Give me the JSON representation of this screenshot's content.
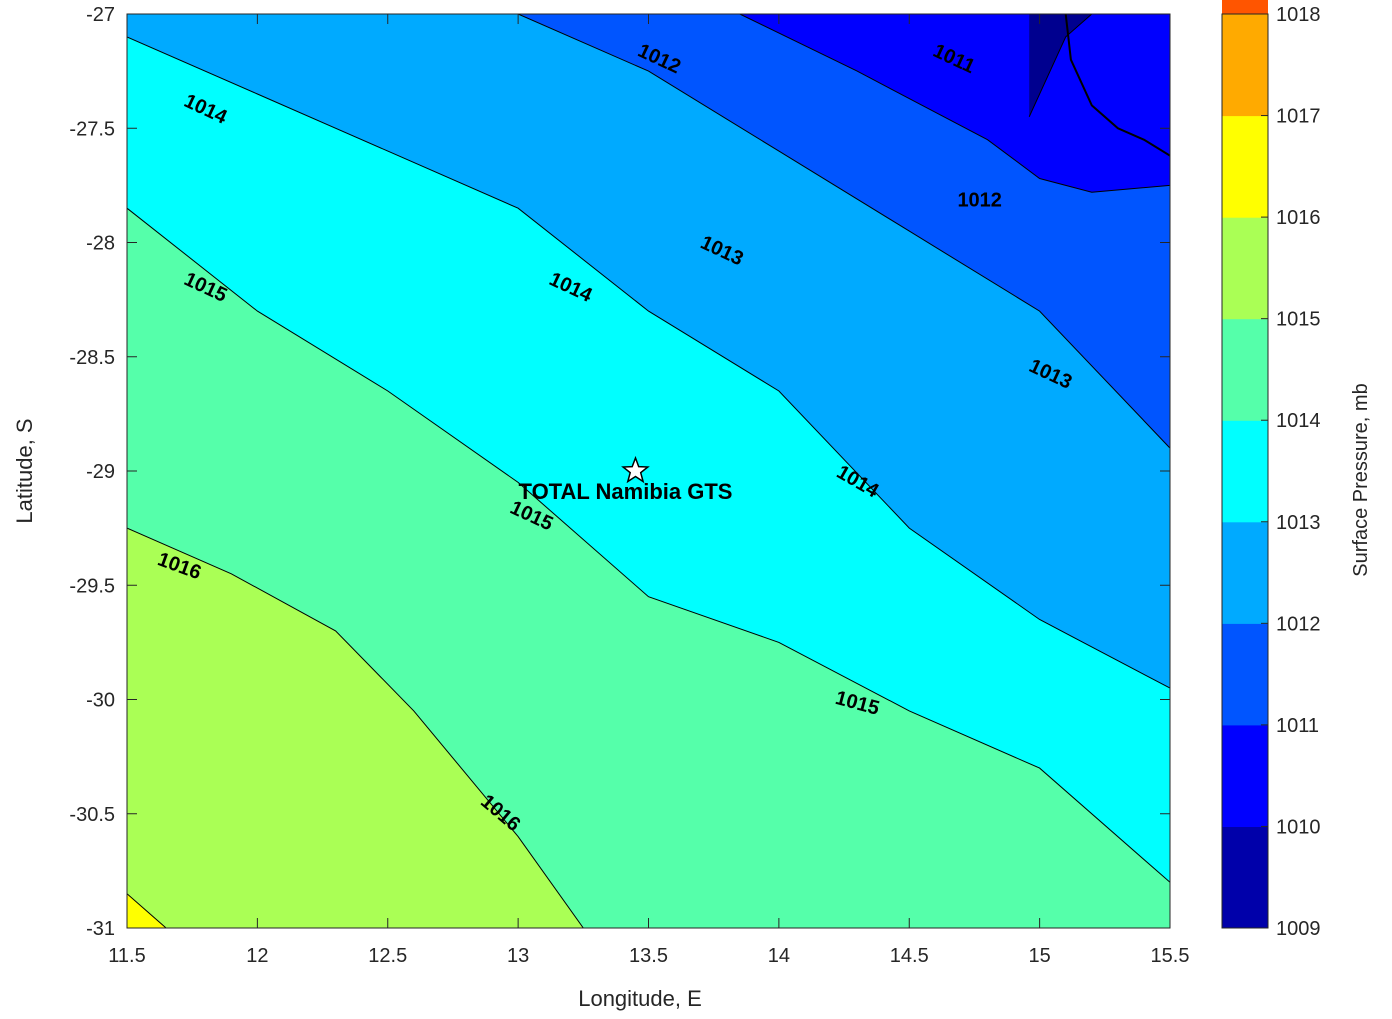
{
  "chart_data": {
    "type": "contour",
    "xlabel": "Longitude, E",
    "ylabel": "Latitude, S",
    "colorbar_label": "Surface Pressure, mb",
    "xlim": [
      11.5,
      15.5
    ],
    "ylim": [
      -31,
      -27
    ],
    "x_ticks": [
      "11.5",
      "12",
      "12.5",
      "13",
      "13.5",
      "14",
      "14.5",
      "15",
      "15.5"
    ],
    "y_ticks": [
      "-27",
      "-27.5",
      "-28",
      "-28.5",
      "-29",
      "-29.5",
      "-30",
      "-30.5",
      "-31"
    ],
    "colorbar": {
      "range": [
        1009,
        1018
      ],
      "ticks": [
        "1009",
        "1010",
        "1011",
        "1012",
        "1013",
        "1014",
        "1015",
        "1016",
        "1017",
        "1018"
      ],
      "colors": [
        "#0000aa",
        "#0000ff",
        "#0055ff",
        "#00aaff",
        "#00ffff",
        "#55ffaa",
        "#aaff55",
        "#ffff00",
        "#ffaa00",
        "#ff5500"
      ]
    },
    "bands": [
      {
        "level": 1010,
        "color": "#0000ff",
        "points": [
          [
            14.96,
            -27.45
          ],
          [
            15.1,
            -27.1
          ],
          [
            15.2,
            -27
          ]
        ]
      },
      {
        "level": 1011,
        "color": "#0055ff",
        "points": [
          [
            13.85,
            -27
          ],
          [
            14.3,
            -27.25
          ],
          [
            14.8,
            -27.55
          ],
          [
            15.0,
            -27.72
          ],
          [
            15.2,
            -27.78
          ],
          [
            15.5,
            -27.75
          ]
        ]
      },
      {
        "level": 1012,
        "color": "#00aaff",
        "points": [
          [
            13.0,
            -27
          ],
          [
            13.5,
            -27.25
          ],
          [
            14.0,
            -27.6
          ],
          [
            14.5,
            -27.95
          ],
          [
            15.0,
            -28.3
          ],
          [
            15.5,
            -28.9
          ]
        ]
      },
      {
        "level": 1013,
        "color": "#00ffff",
        "points": [
          [
            11.5,
            -27.1
          ],
          [
            12.0,
            -27.35
          ],
          [
            12.5,
            -27.6
          ],
          [
            13.0,
            -27.85
          ],
          [
            13.5,
            -28.3
          ],
          [
            14.0,
            -28.65
          ],
          [
            14.5,
            -29.25
          ],
          [
            15.0,
            -29.65
          ],
          [
            15.5,
            -29.95
          ]
        ]
      },
      {
        "level": 1014,
        "color": "#55ffaa",
        "points": [
          [
            11.5,
            -27.85
          ],
          [
            12.0,
            -28.3
          ],
          [
            12.5,
            -28.65
          ],
          [
            13.0,
            -29.05
          ],
          [
            13.5,
            -29.55
          ],
          [
            14.0,
            -29.75
          ],
          [
            14.5,
            -30.05
          ],
          [
            15.0,
            -30.3
          ],
          [
            15.5,
            -30.8
          ]
        ]
      },
      {
        "level": 1015,
        "color": "#aaff55",
        "points": [
          [
            11.5,
            -29.25
          ],
          [
            11.9,
            -29.45
          ],
          [
            12.3,
            -29.7
          ],
          [
            12.6,
            -30.05
          ],
          [
            13.0,
            -30.6
          ],
          [
            13.25,
            -31
          ]
        ]
      },
      {
        "level": 1016,
        "color": "#ffff00",
        "points": [
          [
            11.5,
            -30.85
          ],
          [
            11.6,
            -30.95
          ],
          [
            11.65,
            -31
          ]
        ]
      }
    ],
    "contour_labels": [
      {
        "text": "1011",
        "x": 14.67,
        "y": -27.2,
        "angle": 25
      },
      {
        "text": "1012",
        "x": 13.54,
        "y": -27.2,
        "angle": 25
      },
      {
        "text": "1012",
        "x": 14.77,
        "y": -27.82,
        "angle": 0
      },
      {
        "text": "1013",
        "x": 13.78,
        "y": -28.04,
        "angle": 25
      },
      {
        "text": "1013",
        "x": 15.04,
        "y": -28.58,
        "angle": 25
      },
      {
        "text": "1014",
        "x": 11.8,
        "y": -27.42,
        "angle": 25
      },
      {
        "text": "1014",
        "x": 13.2,
        "y": -28.2,
        "angle": 25
      },
      {
        "text": "1014",
        "x": 14.3,
        "y": -29.05,
        "angle": 30
      },
      {
        "text": "1015",
        "x": 11.8,
        "y": -28.2,
        "angle": 25
      },
      {
        "text": "1015",
        "x": 13.05,
        "y": -29.2,
        "angle": 25
      },
      {
        "text": "1015",
        "x": 14.3,
        "y": -30.02,
        "angle": 15
      },
      {
        "text": "1016",
        "x": 11.7,
        "y": -29.42,
        "angle": 20
      },
      {
        "text": "1016",
        "x": 12.93,
        "y": -30.5,
        "angle": 40
      }
    ],
    "marker": {
      "label": "TOTAL Namibia GTS",
      "x": 13.45,
      "y": -29.0,
      "symbol": "star"
    },
    "coastline": [
      [
        15.1,
        -27
      ],
      [
        15.12,
        -27.2
      ],
      [
        15.2,
        -27.4
      ],
      [
        15.3,
        -27.5
      ],
      [
        15.4,
        -27.55
      ],
      [
        15.5,
        -27.62
      ]
    ]
  }
}
